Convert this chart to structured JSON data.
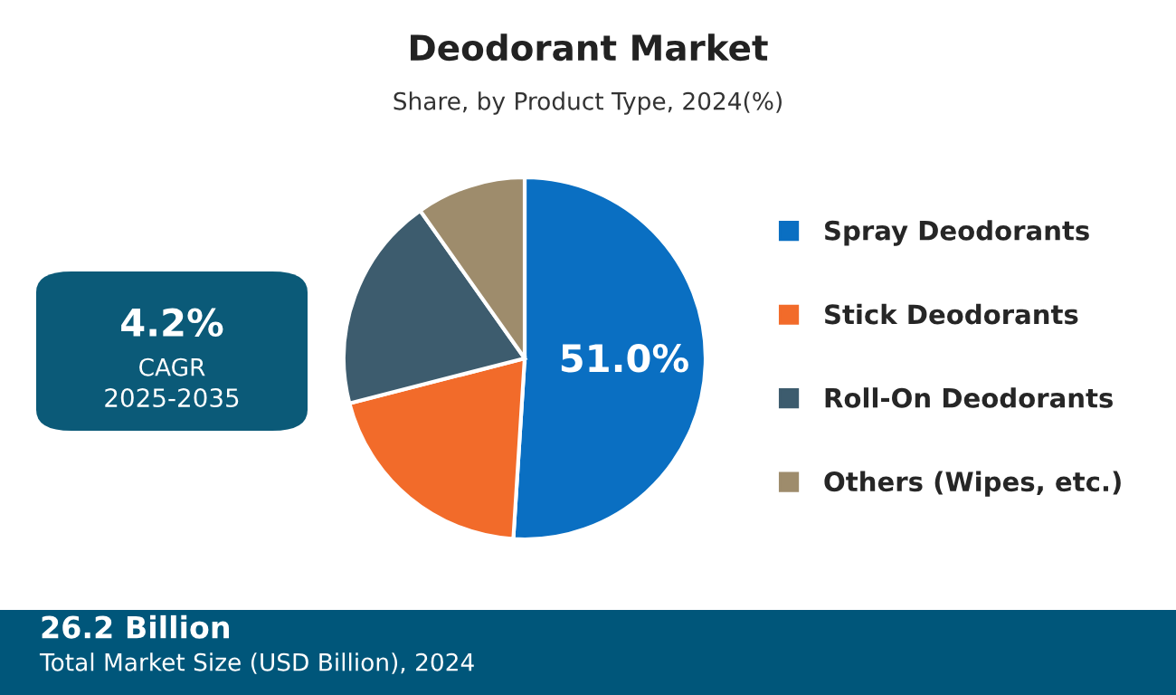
{
  "chart_data": {
    "type": "pie",
    "title": "Deodorant Market",
    "subtitle": "Share, by Product Type, 2024(%)",
    "categories": [
      "Spray Deodorants",
      "Stick Deodorants",
      "Roll-On Deodorants",
      "Others (Wipes, etc.)"
    ],
    "values": [
      51.0,
      20.0,
      19.2,
      9.8
    ],
    "colors": [
      "#0a6fc2",
      "#f26b2a",
      "#3d5c6e",
      "#9e8c6c"
    ],
    "value_labels": [
      "51.0%",
      null,
      null,
      null
    ],
    "legend": "right",
    "annotations": [
      "4.2%",
      "CAGR",
      "2025-2035",
      "26.2 Billion",
      "Total Market Size (USD Billion), 2024"
    ]
  }
}
